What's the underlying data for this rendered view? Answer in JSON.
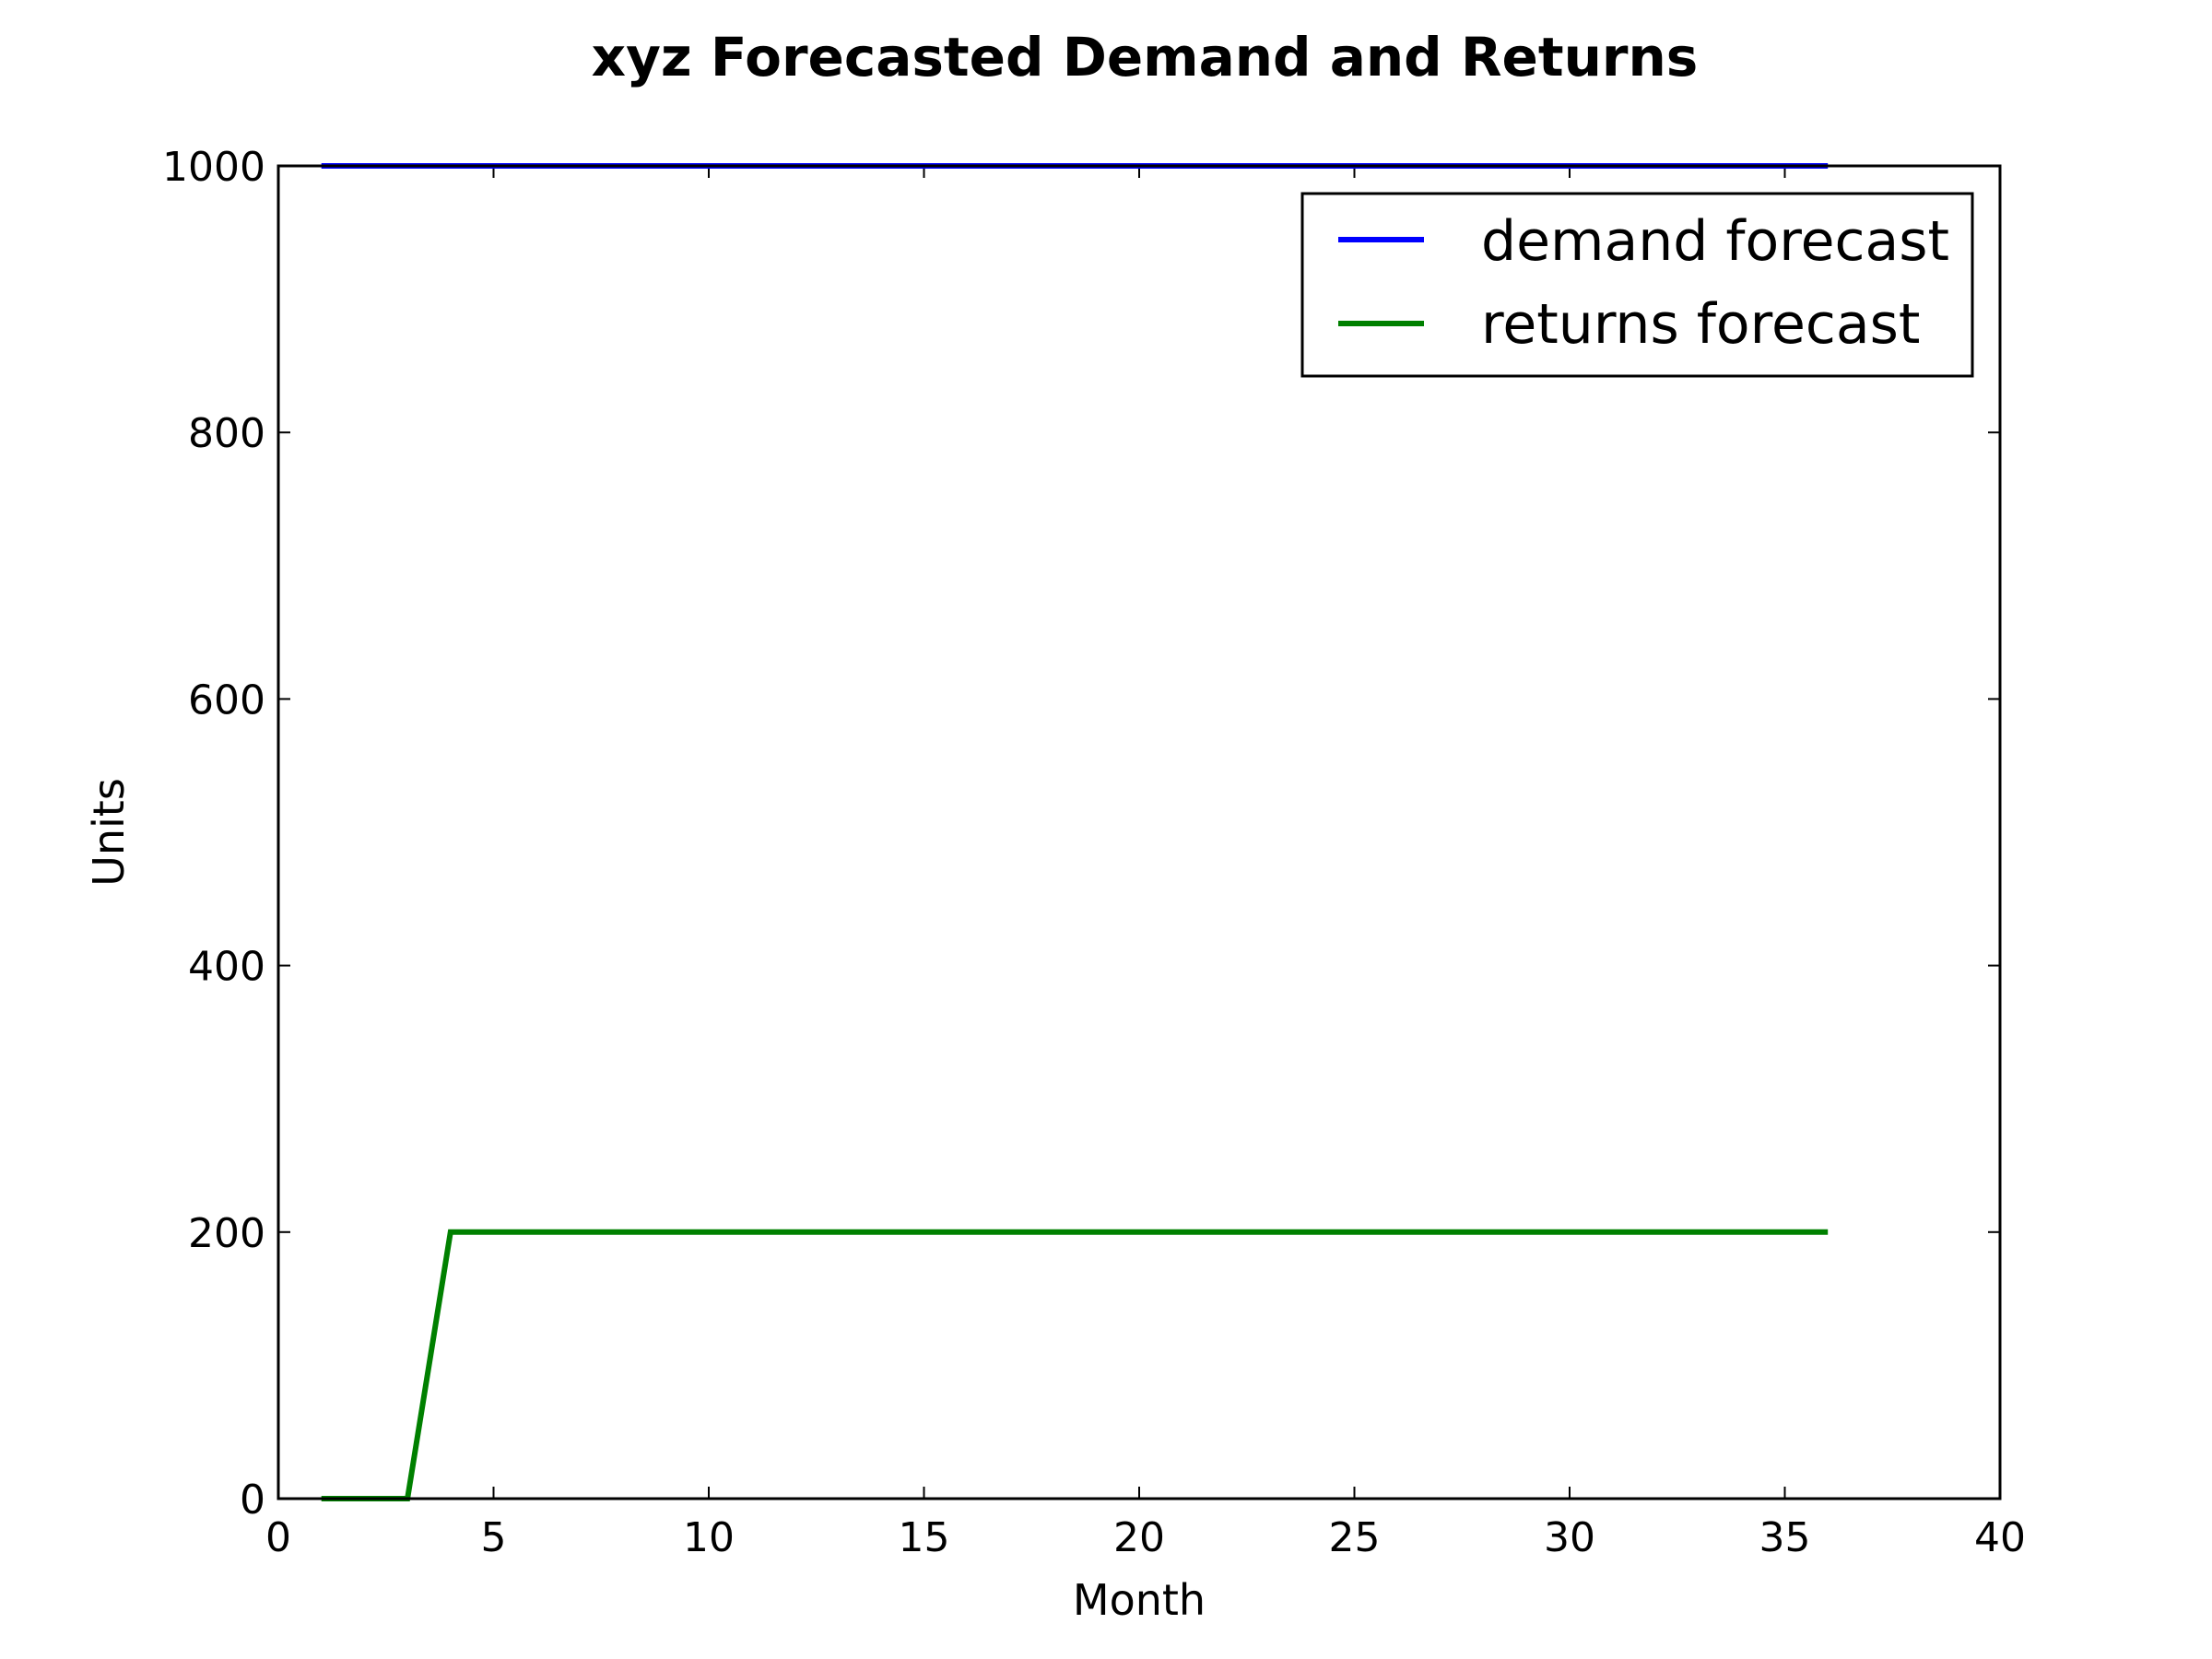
{
  "chart_data": {
    "type": "line",
    "title": "xyz Forecasted Demand and Returns",
    "xlabel": "Month",
    "ylabel": "Units",
    "xlim": [
      0,
      40
    ],
    "ylim": [
      0,
      1000
    ],
    "xticks": [
      0,
      5,
      10,
      15,
      20,
      25,
      30,
      35,
      40
    ],
    "yticks": [
      0,
      200,
      400,
      600,
      800,
      1000
    ],
    "grid": false,
    "legend_position": "top-right",
    "series": [
      {
        "name": "demand forecast",
        "color": "#0000ff",
        "x": [
          1,
          2,
          3,
          4,
          5,
          6,
          7,
          8,
          9,
          10,
          11,
          12,
          13,
          14,
          15,
          16,
          17,
          18,
          19,
          20,
          21,
          22,
          23,
          24,
          25,
          26,
          27,
          28,
          29,
          30,
          31,
          32,
          33,
          34,
          35,
          36
        ],
        "y": [
          1000,
          1000,
          1000,
          1000,
          1000,
          1000,
          1000,
          1000,
          1000,
          1000,
          1000,
          1000,
          1000,
          1000,
          1000,
          1000,
          1000,
          1000,
          1000,
          1000,
          1000,
          1000,
          1000,
          1000,
          1000,
          1000,
          1000,
          1000,
          1000,
          1000,
          1000,
          1000,
          1000,
          1000,
          1000,
          1000
        ]
      },
      {
        "name": "returns forecast",
        "color": "#008000",
        "x": [
          1,
          2,
          3,
          4,
          5,
          6,
          7,
          8,
          9,
          10,
          11,
          12,
          13,
          14,
          15,
          16,
          17,
          18,
          19,
          20,
          21,
          22,
          23,
          24,
          25,
          26,
          27,
          28,
          29,
          30,
          31,
          32,
          33,
          34,
          35,
          36
        ],
        "y": [
          0,
          0,
          0,
          200,
          200,
          200,
          200,
          200,
          200,
          200,
          200,
          200,
          200,
          200,
          200,
          200,
          200,
          200,
          200,
          200,
          200,
          200,
          200,
          200,
          200,
          200,
          200,
          200,
          200,
          200,
          200,
          200,
          200,
          200,
          200,
          200
        ]
      }
    ]
  }
}
